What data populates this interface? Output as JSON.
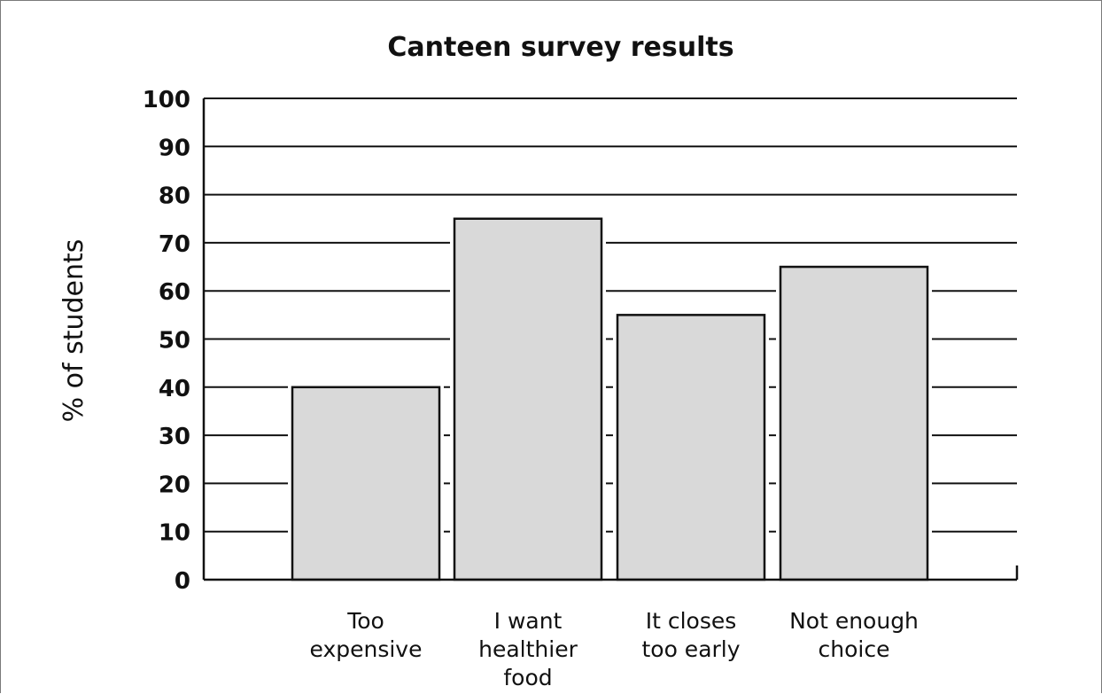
{
  "chart_data": {
    "type": "bar",
    "title": "Canteen survey results",
    "ylabel": "% of students",
    "xlabel": "",
    "categories": [
      [
        "Too",
        "expensive"
      ],
      [
        "I want",
        "healthier",
        "food"
      ],
      [
        "It closes",
        "too early"
      ],
      [
        "Not enough",
        "choice"
      ]
    ],
    "values": [
      40,
      75,
      55,
      65
    ],
    "ylim": [
      0,
      100
    ],
    "yticks": [
      "0",
      "10",
      "20",
      "30",
      "40",
      "50",
      "60",
      "70",
      "80",
      "90",
      "100"
    ],
    "grid": true,
    "colors": {
      "bar_fill": "#d9d9d9",
      "bar_stroke": "#111111"
    }
  }
}
